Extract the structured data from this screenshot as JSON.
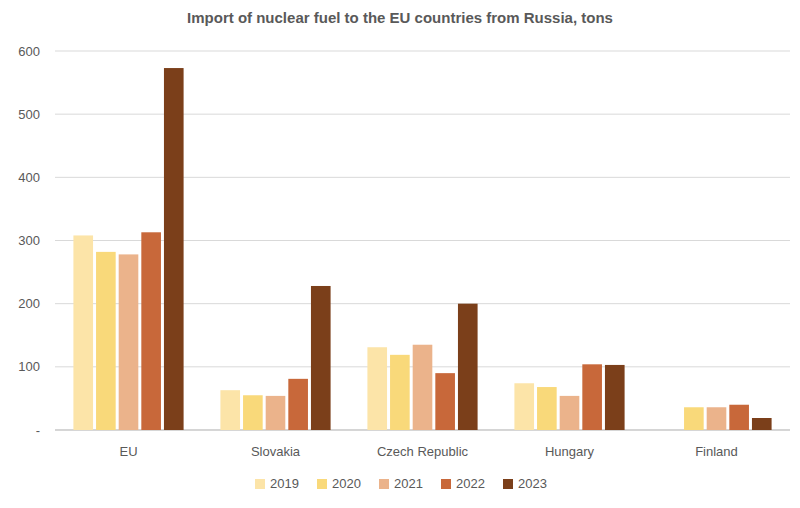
{
  "chart_data": {
    "type": "bar",
    "title": "Import of nuclear fuel to the EU countries from Russia, tons",
    "categories": [
      "EU",
      "Slovakia",
      "Czech Republic",
      "Hungary",
      "Finland"
    ],
    "series": [
      {
        "name": "2019",
        "color": "#fce4a8",
        "values": [
          308,
          63,
          131,
          74,
          null
        ]
      },
      {
        "name": "2020",
        "color": "#f9d97a",
        "values": [
          282,
          55,
          119,
          68,
          36
        ]
      },
      {
        "name": "2021",
        "color": "#ebb38b",
        "values": [
          278,
          54,
          135,
          54,
          36
        ]
      },
      {
        "name": "2022",
        "color": "#c8683a",
        "values": [
          313,
          81,
          90,
          104,
          40
        ]
      },
      {
        "name": "2023",
        "color": "#7b3f1a",
        "values": [
          573,
          228,
          200,
          103,
          19
        ]
      }
    ],
    "ylim": [
      0,
      600
    ],
    "yticks": [
      {
        "value": 0,
        "label": "-"
      },
      100,
      200,
      300,
      400,
      500,
      600
    ],
    "grid": true,
    "legend": "bottom"
  }
}
